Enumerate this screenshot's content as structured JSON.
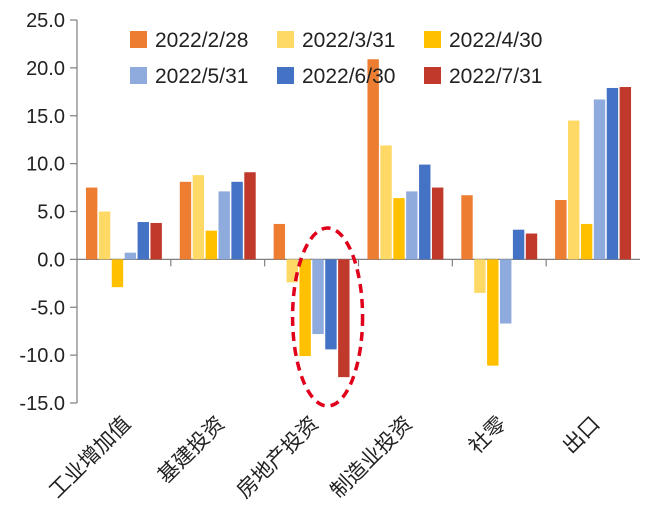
{
  "chart_data": {
    "type": "bar",
    "title": "",
    "xlabel": "",
    "ylabel": "",
    "ylim": [
      -15,
      25
    ],
    "yticks": [
      "25.0",
      "20.0",
      "15.0",
      "10.0",
      "5.0",
      "0.0",
      "-5.0",
      "-10.0",
      "-15.0"
    ],
    "categories": [
      "工业增加值",
      "基建投资",
      "房地产投资",
      "制造业投资",
      "社零",
      "出口"
    ],
    "legend_position": "top",
    "grid": false,
    "series": [
      {
        "name": "2022/2/28",
        "color": "#ED7D31",
        "values": [
          7.5,
          8.1,
          3.7,
          20.9,
          6.7,
          6.2
        ]
      },
      {
        "name": "2022/3/31",
        "color": "#FFD966",
        "values": [
          5.0,
          8.8,
          -2.4,
          11.9,
          -3.5,
          14.5
        ]
      },
      {
        "name": "2022/4/30",
        "color": "#FFC000",
        "values": [
          -2.9,
          3.0,
          -10.1,
          6.4,
          -11.1,
          3.7
        ]
      },
      {
        "name": "2022/5/31",
        "color": "#8FAADC",
        "values": [
          0.7,
          7.1,
          -7.8,
          7.1,
          -6.7,
          16.7
        ]
      },
      {
        "name": "2022/6/30",
        "color": "#4472C4",
        "values": [
          3.9,
          8.1,
          -9.4,
          9.9,
          3.1,
          17.9
        ]
      },
      {
        "name": "2022/7/31",
        "color": "#C0392B",
        "values": [
          3.8,
          9.1,
          -12.3,
          7.5,
          2.7,
          18.0
        ]
      }
    ],
    "annotation": {
      "type": "dashed-ellipse",
      "category": "房地产投资",
      "color": "#E0001B"
    }
  }
}
